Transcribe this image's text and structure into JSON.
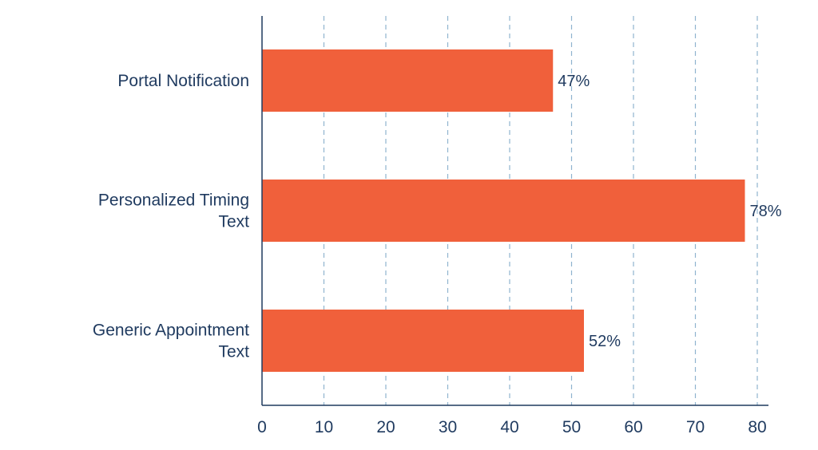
{
  "chart_data": {
    "type": "bar",
    "orientation": "horizontal",
    "categories": [
      [
        "Portal Notification"
      ],
      [
        "Personalized Timing",
        "Text"
      ],
      [
        "Generic Appointment",
        "Text"
      ]
    ],
    "values": [
      47,
      78,
      52
    ],
    "data_labels": [
      "47%",
      "78%",
      "52%"
    ],
    "xlim": [
      0,
      80
    ],
    "xticks": [
      0,
      10,
      20,
      30,
      40,
      50,
      60,
      70,
      80
    ],
    "xtick_labels": [
      "0",
      "10",
      "20",
      "30",
      "40",
      "50",
      "60",
      "70",
      "80"
    ],
    "grid": "vertical-dashed",
    "title": "",
    "xlabel": "",
    "ylabel": "",
    "colors": {
      "bar": "#f0603b",
      "axis": "#1f3a5f",
      "grid": "#8fb3cf",
      "text": "#1f3a5f"
    }
  }
}
